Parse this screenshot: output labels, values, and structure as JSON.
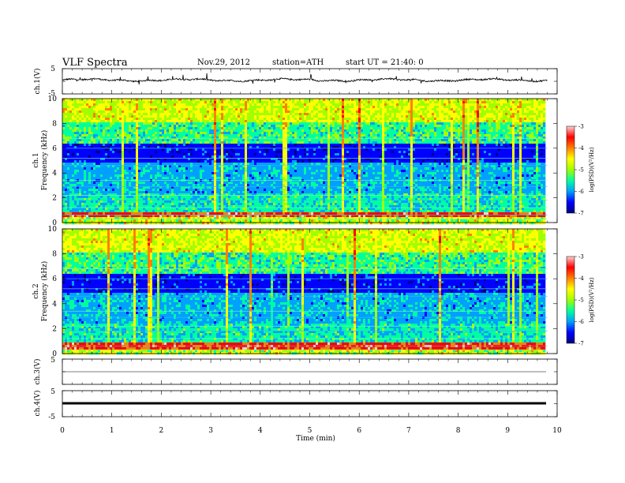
{
  "header": {
    "title": "VLF  Spectra",
    "date": "Nov.29, 2012",
    "station": "station=ATH",
    "start": "start  UT  =   21:40: 0"
  },
  "chart_data": [
    {
      "type": "line",
      "name": "ch1-waveform",
      "ylabel": "ch.1(V)",
      "ylim": [
        -5,
        5
      ],
      "yticks": [
        "5",
        "-5"
      ],
      "xlim": [
        0,
        10
      ],
      "note_values": "noisy trace around about 0.5 V with spikes",
      "baseline": 0.5
    },
    {
      "type": "heatmap",
      "name": "ch1-spectrogram",
      "ylabel_top": "ch.1",
      "ylabel": "Frequency  (kHz)",
      "ylim": [
        0,
        10
      ],
      "yticks": [
        "0",
        "2",
        "4",
        "6",
        "8",
        "10"
      ],
      "xlim": [
        0,
        9.8
      ],
      "colorbar": {
        "label": "log(PSD)(V²/Hz)",
        "range": [
          -7,
          -3
        ],
        "ticks": [
          "-3",
          "-4",
          "-5",
          "-6",
          "-7"
        ],
        "colors": [
          "#000080",
          "#0000ff",
          "#00a0ff",
          "#00ffa0",
          "#a0ff00",
          "#ffff00",
          "#ff8000",
          "#ff0000",
          "#ffd0d0"
        ]
      }
    },
    {
      "type": "heatmap",
      "name": "ch2-spectrogram",
      "ylabel_top": "ch.2",
      "ylabel": "Frequency  (kHz)",
      "ylim": [
        0,
        10
      ],
      "yticks": [
        "0",
        "2",
        "4",
        "6",
        "8",
        "10"
      ],
      "xlim": [
        0,
        9.8
      ],
      "colorbar": {
        "label": "log(PSD)(V²/Hz)",
        "range": [
          -7,
          -3
        ],
        "ticks": [
          "-3",
          "-4",
          "-5",
          "-6",
          "-7"
        ],
        "colors": [
          "#000080",
          "#0000ff",
          "#00a0ff",
          "#00ffa0",
          "#a0ff00",
          "#ffff00",
          "#ff8000",
          "#ff0000",
          "#ffd0d0"
        ]
      }
    },
    {
      "type": "line",
      "name": "ch3-waveform",
      "ylabel": "ch.3(V)",
      "ylim": [
        -5,
        5
      ],
      "yticks": [
        "5"
      ],
      "xlim": [
        0,
        9.8
      ],
      "baseline": 0
    },
    {
      "type": "line",
      "name": "ch4-waveform",
      "ylabel": "ch.4(V)",
      "ylim": [
        -5,
        5
      ],
      "yticks": [
        "5",
        "-5"
      ],
      "xlim": [
        0,
        9.8
      ],
      "baseline": 0
    }
  ],
  "xaxis": {
    "label": "Time  (min)",
    "range": [
      0,
      10
    ],
    "ticks": [
      "0",
      "1",
      "2",
      "3",
      "4",
      "5",
      "6",
      "7",
      "8",
      "9",
      "10"
    ]
  }
}
